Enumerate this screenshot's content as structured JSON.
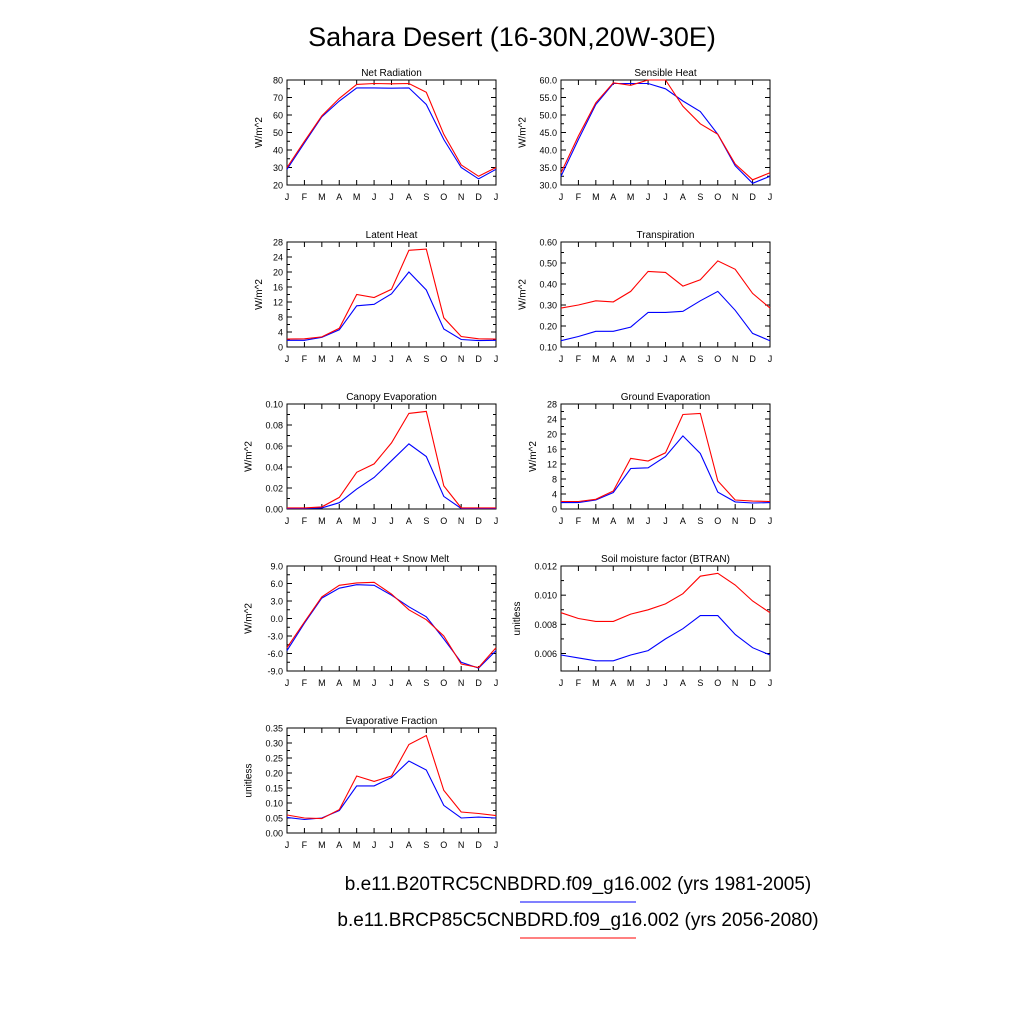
{
  "title": "Sahara Desert (16-30N,20W-30E)",
  "months": [
    "J",
    "F",
    "M",
    "A",
    "M",
    "J",
    "J",
    "A",
    "S",
    "O",
    "N",
    "D",
    "J"
  ],
  "legend": [
    {
      "label": "b.e11.B20TRC5CNBDRD.f09_g16.002 (yrs 1981-2005)",
      "color": "#0000ff"
    },
    {
      "label": "b.e11.BRCP85C5CNBDRD.f09_g16.002 (yrs 2056-2080)",
      "color": "#ff0000"
    }
  ],
  "chart_data": [
    {
      "type": "line",
      "title": "Net Radiation",
      "ylabel": "W/m^2",
      "ylim": [
        20,
        80
      ],
      "yticks": [
        "20",
        "30",
        "40",
        "50",
        "60",
        "70",
        "80"
      ],
      "series": [
        {
          "color": "#0000ff",
          "values": [
            29,
            44,
            59,
            68,
            75.5,
            75.5,
            75.3,
            75.5,
            66,
            46,
            30,
            23.5,
            29
          ]
        },
        {
          "color": "#ff0000",
          "values": [
            30,
            45,
            59.5,
            69.5,
            77.5,
            78,
            77.8,
            78,
            73,
            49,
            31.5,
            25,
            30
          ]
        }
      ]
    },
    {
      "type": "line",
      "title": "Sensible Heat",
      "ylabel": "W/m^2",
      "ylim": [
        30,
        60
      ],
      "yticks": [
        "30.0",
        "35.0",
        "40.0",
        "45.0",
        "50.0",
        "55.0",
        "60.0"
      ],
      "series": [
        {
          "color": "#0000ff",
          "values": [
            32.5,
            43,
            53,
            59,
            59,
            59,
            57.5,
            54,
            51,
            44.5,
            35.5,
            30.5,
            32.5
          ]
        },
        {
          "color": "#ff0000",
          "values": [
            33.5,
            44,
            53.5,
            59.2,
            58.5,
            60,
            60,
            52.5,
            47.5,
            44.5,
            36,
            31.5,
            33.5
          ]
        }
      ]
    },
    {
      "type": "line",
      "title": "Latent Heat",
      "ylabel": "W/m^2",
      "ylim": [
        0,
        28
      ],
      "yticks": [
        "0",
        "4",
        "8",
        "12",
        "16",
        "20",
        "24",
        "28"
      ],
      "series": [
        {
          "color": "#0000ff",
          "values": [
            1.8,
            1.8,
            2.6,
            4.6,
            11,
            11.4,
            14.2,
            20,
            15.2,
            4.8,
            2,
            1.7,
            1.8
          ]
        },
        {
          "color": "#ff0000",
          "values": [
            2.1,
            2.2,
            2.7,
            5,
            14,
            13.2,
            15.4,
            25.8,
            26.1,
            7.8,
            2.8,
            2.2,
            2.1
          ]
        }
      ]
    },
    {
      "type": "line",
      "title": "Transpiration",
      "ylabel": "W/m^2",
      "ylim": [
        0.1,
        0.6
      ],
      "yticks": [
        "0.10",
        "0.20",
        "0.30",
        "0.40",
        "0.50",
        "0.60"
      ],
      "series": [
        {
          "color": "#0000ff",
          "values": [
            0.13,
            0.15,
            0.175,
            0.175,
            0.195,
            0.265,
            0.265,
            0.27,
            0.32,
            0.365,
            0.275,
            0.165,
            0.13
          ]
        },
        {
          "color": "#ff0000",
          "values": [
            0.285,
            0.3,
            0.32,
            0.315,
            0.365,
            0.46,
            0.455,
            0.39,
            0.42,
            0.51,
            0.47,
            0.355,
            0.285
          ]
        }
      ]
    },
    {
      "type": "line",
      "title": "Canopy Evaporation",
      "ylabel": "W/m^2",
      "ylim": [
        0,
        0.1
      ],
      "yticks": [
        "0.00",
        "0.02",
        "0.04",
        "0.06",
        "0.08",
        "0.10"
      ],
      "series": [
        {
          "color": "#0000ff",
          "values": [
            0.0005,
            0.0005,
            0.001,
            0.006,
            0.019,
            0.03,
            0.046,
            0.062,
            0.05,
            0.012,
            0.0005,
            0.0005,
            0.0005
          ]
        },
        {
          "color": "#ff0000",
          "values": [
            0.001,
            0.001,
            0.002,
            0.011,
            0.035,
            0.043,
            0.063,
            0.091,
            0.093,
            0.022,
            0.001,
            0.001,
            0.001
          ]
        }
      ]
    },
    {
      "type": "line",
      "title": "Ground Evaporation",
      "ylabel": "W/m^2",
      "ylim": [
        0,
        28
      ],
      "yticks": [
        "0",
        "4",
        "8",
        "12",
        "16",
        "20",
        "24",
        "28"
      ],
      "series": [
        {
          "color": "#0000ff",
          "values": [
            1.7,
            1.7,
            2.4,
            4.4,
            10.8,
            11,
            14,
            19.5,
            14.8,
            4.5,
            1.9,
            1.6,
            1.7
          ]
        },
        {
          "color": "#ff0000",
          "values": [
            2,
            2,
            2.6,
            4.8,
            13.5,
            12.8,
            15,
            25.2,
            25.5,
            7.5,
            2.4,
            2.1,
            2
          ]
        }
      ]
    },
    {
      "type": "line",
      "title": "Ground Heat + Snow Melt",
      "ylabel": "W/m^2",
      "ylim": [
        -9,
        9
      ],
      "yticks": [
        "-9.0",
        "-6.0",
        "-3.0",
        "0.0",
        "3.0",
        "6.0",
        "9.0"
      ],
      "series": [
        {
          "color": "#0000ff",
          "values": [
            -5.5,
            -0.8,
            3.5,
            5.2,
            5.8,
            5.7,
            4,
            2,
            0.3,
            -3.5,
            -7.5,
            -8.5,
            -5.5
          ]
        },
        {
          "color": "#ff0000",
          "values": [
            -5,
            -0.6,
            3.7,
            5.7,
            6.1,
            6.2,
            4.2,
            1.5,
            -0.2,
            -3,
            -7.8,
            -8.4,
            -5
          ]
        }
      ]
    },
    {
      "type": "line",
      "title": "Soil moisture factor (BTRAN)",
      "ylabel": "unitless",
      "ylim": [
        0.0048,
        0.012
      ],
      "yticks": [
        "0.006",
        "0.008",
        "0.010",
        "0.012"
      ],
      "ytick_values": [
        0.006,
        0.008,
        0.01,
        0.012
      ],
      "series": [
        {
          "color": "#0000ff",
          "values": [
            0.0059,
            0.0057,
            0.0055,
            0.0055,
            0.0059,
            0.0062,
            0.007,
            0.0077,
            0.0086,
            0.0086,
            0.0073,
            0.0064,
            0.0059
          ]
        },
        {
          "color": "#ff0000",
          "values": [
            0.0088,
            0.0084,
            0.0082,
            0.0082,
            0.0087,
            0.009,
            0.0094,
            0.0101,
            0.0113,
            0.0115,
            0.0107,
            0.0096,
            0.0088
          ]
        }
      ]
    },
    {
      "type": "line",
      "title": "Evaporative Fraction",
      "ylabel": "unitless",
      "ylim": [
        0,
        0.35
      ],
      "yticks": [
        "0.00",
        "0.05",
        "0.10",
        "0.15",
        "0.20",
        "0.25",
        "0.30",
        "0.35"
      ],
      "series": [
        {
          "color": "#0000ff",
          "values": [
            0.052,
            0.045,
            0.05,
            0.075,
            0.157,
            0.157,
            0.185,
            0.24,
            0.21,
            0.092,
            0.05,
            0.053,
            0.05
          ]
        },
        {
          "color": "#ff0000",
          "values": [
            0.06,
            0.05,
            0.048,
            0.078,
            0.19,
            0.172,
            0.19,
            0.295,
            0.325,
            0.142,
            0.07,
            0.065,
            0.058
          ]
        }
      ]
    }
  ]
}
